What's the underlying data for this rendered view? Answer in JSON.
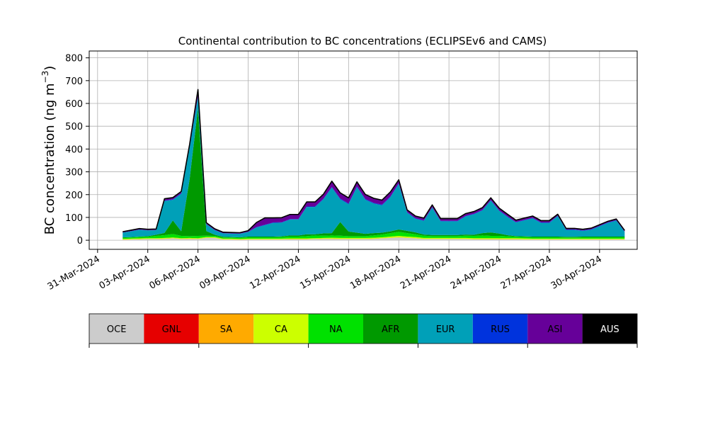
{
  "chart_data": {
    "type": "area",
    "title": "Continental contribution to BC concentrations (ECLIPSEv6 and CAMS)",
    "ylabel_main": "BC concentration (ng m",
    "ylabel_exp": "−3",
    "ylabel_close": ")",
    "xlabel": "",
    "xlim": [
      "2024-03-30T12:00",
      "2024-05-02T06:00"
    ],
    "ylim": [
      -40,
      830
    ],
    "grid": true,
    "yticks": [
      0,
      100,
      200,
      300,
      400,
      500,
      600,
      700,
      800
    ],
    "xtick_labels": [
      "31-Mar-2024",
      "03-Apr-2024",
      "06-Apr-2024",
      "09-Apr-2024",
      "12-Apr-2024",
      "15-Apr-2024",
      "18-Apr-2024",
      "21-Apr-2024",
      "24-Apr-2024",
      "27-Apr-2024",
      "30-Apr-2024"
    ],
    "xtick_dates": [
      "2024-03-31",
      "2024-04-03",
      "2024-04-06",
      "2024-04-09",
      "2024-04-12",
      "2024-04-15",
      "2024-04-18",
      "2024-04-21",
      "2024-04-24",
      "2024-04-27",
      "2024-04-30"
    ],
    "x": [
      "2024-04-01T12:00",
      "2024-04-02T00:00",
      "2024-04-02T12:00",
      "2024-04-03T00:00",
      "2024-04-03T12:00",
      "2024-04-04T00:00",
      "2024-04-04T12:00",
      "2024-04-05T00:00",
      "2024-04-05T12:00",
      "2024-04-06T00:00",
      "2024-04-06T12:00",
      "2024-04-07T00:00",
      "2024-04-07T12:00",
      "2024-04-08T00:00",
      "2024-04-08T12:00",
      "2024-04-09T00:00",
      "2024-04-09T12:00",
      "2024-04-10T00:00",
      "2024-04-10T12:00",
      "2024-04-11T00:00",
      "2024-04-11T12:00",
      "2024-04-12T00:00",
      "2024-04-12T12:00",
      "2024-04-13T00:00",
      "2024-04-13T12:00",
      "2024-04-14T00:00",
      "2024-04-14T12:00",
      "2024-04-15T00:00",
      "2024-04-15T12:00",
      "2024-04-16T00:00",
      "2024-04-16T12:00",
      "2024-04-17T00:00",
      "2024-04-17T12:00",
      "2024-04-18T00:00",
      "2024-04-18T12:00",
      "2024-04-19T00:00",
      "2024-04-19T12:00",
      "2024-04-20T00:00",
      "2024-04-20T12:00",
      "2024-04-21T00:00",
      "2024-04-21T12:00",
      "2024-04-22T00:00",
      "2024-04-22T12:00",
      "2024-04-23T00:00",
      "2024-04-23T12:00",
      "2024-04-24T00:00",
      "2024-04-24T12:00",
      "2024-04-25T00:00",
      "2024-04-25T12:00",
      "2024-04-26T00:00",
      "2024-04-26T12:00",
      "2024-04-27T00:00",
      "2024-04-27T12:00",
      "2024-04-28T00:00",
      "2024-04-28T12:00",
      "2024-04-29T00:00",
      "2024-04-29T12:00",
      "2024-04-30T00:00",
      "2024-04-30T12:00",
      "2024-05-01T00:00",
      "2024-05-01T12:00"
    ],
    "series": [
      {
        "name": "OCE",
        "color": "#cccccc",
        "values": [
          2,
          3,
          4,
          5,
          5,
          6,
          8,
          5,
          6,
          5,
          10,
          10,
          3,
          3,
          2,
          3,
          3,
          3,
          3,
          3,
          4,
          4,
          4,
          5,
          6,
          6,
          5,
          5,
          5,
          5,
          6,
          8,
          10,
          12,
          10,
          8,
          5,
          5,
          5,
          5,
          5,
          5,
          4,
          4,
          4,
          4,
          4,
          4,
          3,
          3,
          3,
          3,
          3,
          3,
          3,
          3,
          3,
          3,
          3,
          3,
          3
        ]
      },
      {
        "name": "GNL",
        "color": "#e60000",
        "values": [
          0,
          0,
          0,
          0,
          0,
          0,
          0,
          0,
          0,
          0,
          0,
          0,
          0,
          0,
          0,
          0,
          0,
          0,
          0,
          0,
          0,
          0,
          0,
          0,
          0,
          0,
          0,
          0,
          0,
          0,
          0,
          0,
          0,
          0,
          0,
          0,
          0,
          0,
          0,
          0,
          0,
          0,
          0,
          0,
          0,
          0,
          0,
          0,
          0,
          0,
          0,
          0,
          0,
          0,
          0,
          0,
          0,
          0,
          0,
          0,
          0
        ]
      },
      {
        "name": "SA",
        "color": "#ffaa00",
        "values": [
          1,
          1,
          1,
          1,
          1,
          1,
          1,
          1,
          1,
          1,
          1,
          1,
          1,
          1,
          1,
          1,
          1,
          1,
          1,
          1,
          1,
          1,
          1,
          1,
          1,
          1,
          1,
          1,
          1,
          1,
          1,
          1,
          1,
          1,
          1,
          1,
          1,
          1,
          1,
          1,
          1,
          1,
          1,
          1,
          1,
          1,
          1,
          1,
          1,
          1,
          1,
          1,
          1,
          1,
          1,
          1,
          1,
          1,
          1,
          1,
          1
        ]
      },
      {
        "name": "CA",
        "color": "#ccff00",
        "values": [
          3,
          3,
          3,
          3,
          3,
          3,
          3,
          3,
          3,
          3,
          3,
          3,
          3,
          3,
          3,
          3,
          3,
          3,
          3,
          3,
          3,
          3,
          3,
          3,
          3,
          4,
          4,
          4,
          4,
          4,
          4,
          4,
          5,
          6,
          5,
          5,
          4,
          4,
          4,
          4,
          4,
          4,
          4,
          4,
          4,
          4,
          4,
          4,
          4,
          3,
          3,
          3,
          3,
          3,
          3,
          3,
          3,
          3,
          3,
          3,
          3
        ]
      },
      {
        "name": "NA",
        "color": "#00e100",
        "values": [
          5,
          5,
          6,
          6,
          10,
          12,
          15,
          10,
          8,
          10,
          6,
          5,
          5,
          5,
          5,
          6,
          6,
          6,
          6,
          7,
          8,
          8,
          10,
          12,
          10,
          10,
          10,
          8,
          8,
          8,
          10,
          12,
          15,
          18,
          15,
          12,
          10,
          8,
          8,
          8,
          8,
          10,
          10,
          12,
          10,
          10,
          8,
          6,
          6,
          6,
          6,
          6,
          6,
          5,
          5,
          6,
          6,
          6,
          6,
          6,
          6
        ]
      },
      {
        "name": "AFR",
        "color": "#009900",
        "values": [
          2,
          2,
          2,
          3,
          5,
          10,
          60,
          20,
          250,
          560,
          20,
          5,
          3,
          2,
          2,
          3,
          3,
          3,
          3,
          3,
          5,
          5,
          8,
          5,
          10,
          10,
          60,
          20,
          15,
          10,
          10,
          8,
          8,
          10,
          10,
          8,
          5,
          5,
          5,
          5,
          5,
          5,
          5,
          10,
          15,
          10,
          5,
          3,
          3,
          3,
          3,
          3,
          3,
          3,
          3,
          3,
          3,
          3,
          3,
          3,
          3
        ]
      },
      {
        "name": "EUR",
        "color": "#00a0b8",
        "values": [
          20,
          25,
          30,
          25,
          20,
          140,
          90,
          165,
          140,
          50,
          30,
          20,
          15,
          15,
          15,
          20,
          40,
          50,
          60,
          60,
          70,
          70,
          120,
          120,
          150,
          200,
          100,
          120,
          200,
          150,
          130,
          120,
          150,
          200,
          80,
          60,
          60,
          120,
          60,
          60,
          60,
          80,
          90,
          100,
          140,
          100,
          80,
          60,
          70,
          80,
          60,
          60,
          90,
          30,
          30,
          25,
          30,
          45,
          60,
          70,
          20
        ]
      },
      {
        "name": "RUS",
        "color": "#0033dd",
        "values": [
          1,
          1,
          1,
          1,
          1,
          2,
          2,
          2,
          2,
          2,
          1,
          1,
          1,
          1,
          1,
          1,
          2,
          2,
          2,
          2,
          2,
          2,
          2,
          2,
          2,
          3,
          3,
          3,
          3,
          3,
          3,
          3,
          3,
          3,
          2,
          2,
          2,
          2,
          2,
          2,
          2,
          2,
          2,
          2,
          2,
          2,
          2,
          2,
          2,
          2,
          2,
          2,
          2,
          2,
          2,
          2,
          2,
          2,
          2,
          2,
          2
        ]
      },
      {
        "name": "ASI",
        "color": "#660099",
        "values": [
          3,
          4,
          4,
          4,
          4,
          8,
          8,
          8,
          10,
          30,
          6,
          5,
          4,
          4,
          4,
          5,
          20,
          30,
          20,
          20,
          20,
          20,
          20,
          20,
          20,
          25,
          25,
          25,
          20,
          20,
          20,
          20,
          20,
          15,
          10,
          10,
          10,
          10,
          10,
          10,
          10,
          10,
          10,
          10,
          10,
          10,
          10,
          8,
          8,
          8,
          8,
          8,
          6,
          5,
          5,
          5,
          5,
          5,
          5,
          5,
          5
        ]
      },
      {
        "name": "AUS",
        "color": "#000000",
        "values": [
          0,
          0,
          0,
          0,
          0,
          0,
          0,
          0,
          0,
          0,
          0,
          0,
          0,
          0,
          0,
          0,
          0,
          0,
          0,
          0,
          0,
          0,
          0,
          0,
          0,
          0,
          0,
          0,
          0,
          0,
          0,
          0,
          0,
          0,
          0,
          0,
          0,
          0,
          0,
          0,
          0,
          0,
          0,
          0,
          0,
          0,
          0,
          0,
          0,
          0,
          0,
          0,
          0,
          0,
          0,
          0,
          0,
          0,
          0,
          0,
          0
        ]
      }
    ],
    "legend": {
      "placement": "bottom colorbar",
      "label_colors": [
        "#000000",
        "#000000",
        "#000000",
        "#000000",
        "#000000",
        "#000000",
        "#000000",
        "#000000",
        "#000000",
        "#ffffff"
      ]
    }
  }
}
